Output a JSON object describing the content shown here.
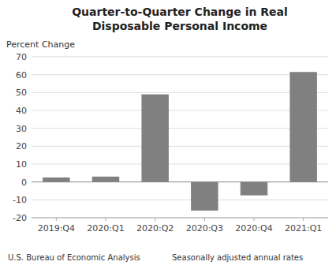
{
  "chart_data": {
    "type": "bar",
    "title": "Quarter-to-Quarter Change in Real",
    "subtitle": "Disposable Personal Income",
    "ylabel": "Percent Change",
    "categories": [
      "2019:Q4",
      "2020:Q1",
      "2020:Q2",
      "2020:Q3",
      "2020:Q4",
      "2021:Q1"
    ],
    "values": [
      2.5,
      3.0,
      49.0,
      -16.0,
      -7.5,
      61.5
    ],
    "color": "#808080",
    "ylim": [
      -20,
      70
    ],
    "yticks": [
      -20,
      -10,
      0,
      10,
      20,
      30,
      40,
      50,
      60,
      70
    ],
    "grid": true,
    "annotations": [
      "U.S. Bureau of Economic Analysis",
      "Seasonally adjusted annual rates"
    ]
  }
}
